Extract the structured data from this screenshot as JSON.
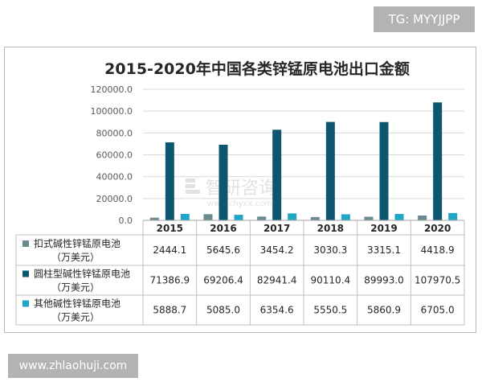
{
  "watermark": {
    "top_badge": "TG: MYYJJPP",
    "bottom_badge": "www.zhlaohuji.com",
    "center_brand": "智研咨询",
    "center_url": "www.chyxx.com"
  },
  "chart_data": {
    "type": "bar",
    "title": "2015-2020年中国各类锌锰原电池出口金额",
    "categories": [
      "2015",
      "2016",
      "2017",
      "2018",
      "2019",
      "2020"
    ],
    "series": [
      {
        "name": "扣式碱性锌锰原电池（万美元）",
        "name_lines": [
          "扣式碱性锌锰原电池",
          "（万美元）"
        ],
        "values": [
          2444.1,
          5645.6,
          3454.2,
          3030.3,
          3315.1,
          4418.9
        ],
        "labels": [
          "2444.1",
          "5645.6",
          "3454.2",
          "3030.3",
          "3315.1",
          "4418.9"
        ],
        "color": "#6b8a92"
      },
      {
        "name": "圆柱型碱性锌锰原电池（万美元）",
        "name_lines": [
          "圆柱型碱性锌锰原电池",
          "（万美元）"
        ],
        "values": [
          71386.9,
          69206.4,
          82941.4,
          90110.4,
          89993.0,
          107970.5
        ],
        "labels": [
          "71386.9",
          "69206.4",
          "82941.4",
          "90110.4",
          "89993.0",
          "107970.5"
        ],
        "color": "#0d5670"
      },
      {
        "name": "其他碱性锌锰原电池（万美元）",
        "name_lines": [
          "其他碱性锌锰原电池",
          "（万美元）"
        ],
        "values": [
          5888.7,
          5085.0,
          6354.6,
          5550.5,
          5860.9,
          6705.0
        ],
        "labels": [
          "5888.7",
          "5085.0",
          "6354.6",
          "5550.5",
          "5860.9",
          "6705.0"
        ],
        "color": "#22a6c7"
      }
    ],
    "yticks": [
      "0.0",
      "20000.0",
      "40000.0",
      "60000.0",
      "80000.0",
      "100000.0",
      "120000.0"
    ],
    "ylim": [
      0,
      120000
    ],
    "grid": true,
    "legend": "data-table"
  }
}
